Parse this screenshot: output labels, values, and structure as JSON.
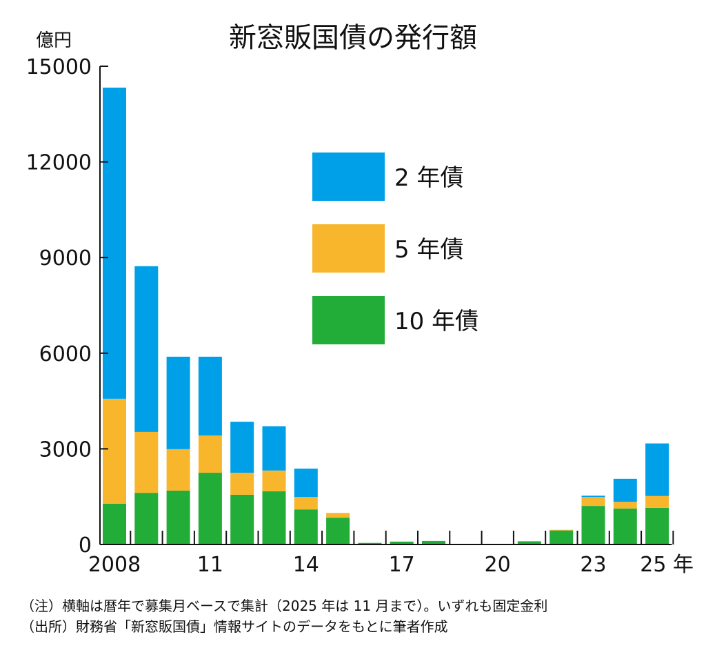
{
  "chart_data": {
    "type": "bar",
    "stacked": true,
    "title": "新窓販国債の発行額",
    "ylabel": "億円",
    "ylim": [
      0,
      15000
    ],
    "yticks": [
      0,
      3000,
      6000,
      9000,
      12000,
      15000
    ],
    "categories": [
      "2008",
      "2009",
      "2010",
      "2011",
      "2012",
      "2013",
      "2014",
      "2015",
      "2016",
      "2017",
      "2018",
      "2019",
      "2020",
      "2021",
      "2022",
      "2023",
      "2024",
      "2025"
    ],
    "xtick_labels": [
      {
        "index": 0,
        "label": "2008"
      },
      {
        "index": 3,
        "label": "11"
      },
      {
        "index": 6,
        "label": "14"
      },
      {
        "index": 9,
        "label": "17"
      },
      {
        "index": 12,
        "label": "20"
      },
      {
        "index": 15,
        "label": "23"
      },
      {
        "index": 17,
        "label": "25 年"
      }
    ],
    "series": [
      {
        "name": "10 年債",
        "color": "#22ac38",
        "values": [
          1280,
          1620,
          1690,
          2250,
          1560,
          1670,
          1100,
          840,
          50,
          90,
          110,
          15,
          15,
          100,
          440,
          1210,
          1130,
          1150
        ]
      },
      {
        "name": "5 年債",
        "color": "#f8b62d",
        "values": [
          3290,
          1910,
          1300,
          1170,
          690,
          650,
          390,
          150,
          0,
          0,
          0,
          0,
          0,
          0,
          20,
          280,
          210,
          370
        ]
      },
      {
        "name": "2 年債",
        "color": "#00a0e9",
        "values": [
          9760,
          5200,
          2900,
          2470,
          1600,
          1390,
          890,
          0,
          0,
          0,
          0,
          0,
          0,
          0,
          0,
          40,
          720,
          1650
        ]
      }
    ],
    "legend": {
      "placement": "upper-center",
      "order": [
        "2 年債",
        "5 年債",
        "10 年債"
      ]
    },
    "grid": false
  },
  "notes": [
    "（注）横軸は暦年で募集月ベースで集計（2025 年は 11 月まで）。いずれも固定金利",
    "（出所）財務省「新窓販国債」情報サイトのデータをもとに筆者作成"
  ]
}
